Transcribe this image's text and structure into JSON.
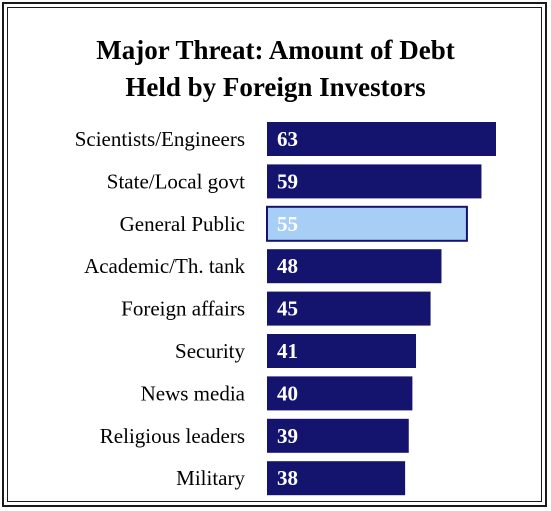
{
  "chart_data": {
    "type": "bar",
    "orientation": "horizontal",
    "title_lines": [
      "Major Threat: Amount of Debt",
      "Held by Foreign Investors"
    ],
    "categories": [
      "Scientists/Engineers",
      "State/Local govt",
      "General Public",
      "Academic/Th. tank",
      "Foreign affairs",
      "Security",
      "News media",
      "Religious leaders",
      "Military"
    ],
    "values": [
      63,
      59,
      55,
      48,
      45,
      41,
      40,
      39,
      38
    ],
    "highlight_category": "General Public",
    "colors": {
      "bar": "#14146e",
      "highlight_bar": "#a7cef5",
      "highlight_border": "#14146e",
      "value_label": "#ffffff"
    },
    "xlim": [
      0,
      63
    ],
    "grid": false,
    "legend": "none"
  }
}
